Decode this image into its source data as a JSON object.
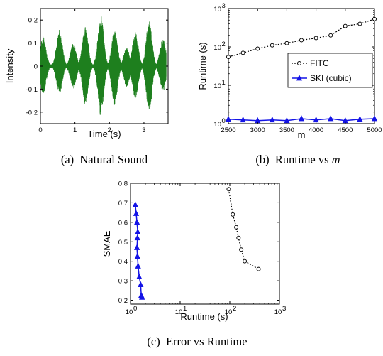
{
  "chart_data": [
    {
      "type": "line",
      "caption": "(a)  Natural Sound",
      "xlabel": "Time (s)",
      "ylabel": "Intensity",
      "xlim": [
        0,
        3.7
      ],
      "ylim": [
        -0.25,
        0.25
      ],
      "xticks": [
        0,
        1,
        2,
        3
      ],
      "yticks": [
        -0.2,
        -0.1,
        0,
        0.1,
        0.2
      ],
      "xtick_labels": [
        "0",
        "1",
        "2",
        "3"
      ],
      "ytick_labels": [
        "-0.2",
        "-0.1",
        "0",
        "0.1",
        "0.2"
      ],
      "series_color": "#1e7f1e",
      "bursts": [
        {
          "t": 0.08,
          "pos": 0.13,
          "neg": -0.12
        },
        {
          "t": 0.55,
          "pos": 0.16,
          "neg": -0.12
        },
        {
          "t": 0.95,
          "pos": 0.1,
          "neg": -0.1
        },
        {
          "t": 1.3,
          "pos": 0.17,
          "neg": -0.17
        },
        {
          "t": 1.75,
          "pos": 0.22,
          "neg": -0.22
        },
        {
          "t": 2.15,
          "pos": 0.16,
          "neg": -0.17
        },
        {
          "t": 2.5,
          "pos": 0.08,
          "neg": -0.09
        },
        {
          "t": 2.75,
          "pos": 0.15,
          "neg": -0.14
        },
        {
          "t": 3.15,
          "pos": 0.2,
          "neg": -0.2
        },
        {
          "t": 3.55,
          "pos": 0.12,
          "neg": -0.11
        }
      ]
    },
    {
      "type": "line",
      "caption": "(b)  Runtime vs ",
      "caption_math": "m",
      "xlabel": "m",
      "ylabel": "Runtime (s)",
      "yscale": "log",
      "xlim": [
        2500,
        5000
      ],
      "ylim": [
        1,
        1000
      ],
      "xticks": [
        2500,
        3000,
        3500,
        4000,
        4500,
        5000
      ],
      "xtick_labels": [
        "2500",
        "3000",
        "3500",
        "4000",
        "4500",
        "5000"
      ],
      "yticks": [
        1,
        10,
        100,
        1000
      ],
      "ytick_base": "10",
      "ytick_exponents": [
        "0",
        "1",
        "2",
        "3"
      ],
      "legend_position": "center-right",
      "series": [
        {
          "name": "FITC",
          "color": "#000000",
          "marker": "circle",
          "linestyle": "dotted",
          "x": [
            2500,
            2750,
            3000,
            3250,
            3500,
            3750,
            4000,
            4250,
            4500,
            4750,
            5000
          ],
          "y": [
            55,
            70,
            90,
            110,
            125,
            150,
            170,
            200,
            350,
            400,
            530
          ]
        },
        {
          "name": "SKI (cubic)",
          "color": "#1414e6",
          "marker": "triangle",
          "linestyle": "solid",
          "x": [
            2500,
            2750,
            3000,
            3250,
            3500,
            3750,
            4000,
            4250,
            4500,
            4750,
            5000
          ],
          "y": [
            1.3,
            1.25,
            1.2,
            1.25,
            1.2,
            1.35,
            1.25,
            1.35,
            1.2,
            1.3,
            1.35
          ]
        }
      ]
    },
    {
      "type": "scatter",
      "caption": "(c)  Error vs Runtime",
      "xlabel": "Runtime (s)",
      "ylabel": "SMAE",
      "xscale": "log",
      "xlim": [
        1,
        1000
      ],
      "ylim": [
        0.18,
        0.8
      ],
      "xticks": [
        1,
        10,
        100,
        1000
      ],
      "xtick_base": "10",
      "xtick_exponents": [
        "0",
        "1",
        "2",
        "3"
      ],
      "yticks": [
        0.2,
        0.3,
        0.4,
        0.5,
        0.6,
        0.7,
        0.8
      ],
      "ytick_labels": [
        "0.2",
        "0.3",
        "0.4",
        "0.5",
        "0.6",
        "0.7",
        "0.8"
      ],
      "series": [
        {
          "name": "FITC",
          "color": "#000000",
          "marker": "circle",
          "linestyle": "dotted",
          "x": [
            95,
            115,
            135,
            150,
            170,
            200,
            380
          ],
          "y": [
            0.77,
            0.64,
            0.575,
            0.52,
            0.46,
            0.4,
            0.36
          ]
        },
        {
          "name": "SKI (cubic)",
          "color": "#1414e6",
          "marker": "triangle",
          "linestyle": "solid",
          "x": [
            1.25,
            1.3,
            1.35,
            1.4,
            1.38,
            1.35,
            1.38,
            1.42,
            1.5,
            1.6,
            1.65,
            1.7
          ],
          "y": [
            0.69,
            0.645,
            0.6,
            0.55,
            0.52,
            0.47,
            0.425,
            0.375,
            0.32,
            0.28,
            0.225,
            0.215
          ]
        }
      ]
    }
  ]
}
